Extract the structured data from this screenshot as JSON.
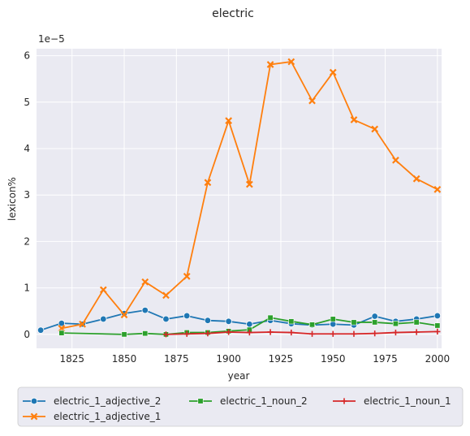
{
  "chart_data": {
    "type": "line",
    "title": "electric",
    "xlabel": "year",
    "ylabel": "lexicon%",
    "y_scale_label": "1e−5",
    "xlim": [
      1808,
      2002
    ],
    "ylim": [
      -0.3,
      6.15
    ],
    "x_ticks": [
      1825,
      1850,
      1875,
      1900,
      1925,
      1950,
      1975,
      2000
    ],
    "y_ticks": [
      0,
      1,
      2,
      3,
      4,
      5,
      6
    ],
    "grid": true,
    "legend_position": "bottom",
    "colors": {
      "plot_bg": "#eaeaf2",
      "grid": "#ffffff",
      "text": "#262626"
    },
    "series": [
      {
        "name": "electric_1_adjective_2",
        "color": "#1f77b4",
        "marker": "circle",
        "x": [
          1810,
          1820,
          1830,
          1840,
          1850,
          1860,
          1870,
          1880,
          1890,
          1900,
          1910,
          1920,
          1930,
          1940,
          1950,
          1960,
          1970,
          1980,
          1990,
          2000
        ],
        "y": [
          0.09,
          0.24,
          0.22,
          0.33,
          0.45,
          0.52,
          0.33,
          0.4,
          0.3,
          0.28,
          0.22,
          0.3,
          0.23,
          0.2,
          0.22,
          0.2,
          0.39,
          0.28,
          0.33,
          0.4
        ]
      },
      {
        "name": "electric_1_adjective_1",
        "color": "#ff7f0e",
        "marker": "x",
        "x": [
          1820,
          1830,
          1840,
          1850,
          1860,
          1870,
          1880,
          1890,
          1900,
          1910,
          1920,
          1930,
          1940,
          1950,
          1960,
          1970,
          1980,
          1990,
          2000
        ],
        "y": [
          0.13,
          0.22,
          0.96,
          0.42,
          1.13,
          0.84,
          1.25,
          3.27,
          4.6,
          3.23,
          5.81,
          5.87,
          5.03,
          5.64,
          4.62,
          4.42,
          3.75,
          3.35,
          3.12
        ]
      },
      {
        "name": "electric_1_noun_2",
        "color": "#2ca02c",
        "marker": "square",
        "x": [
          1820,
          1850,
          1860,
          1870,
          1880,
          1890,
          1900,
          1910,
          1920,
          1930,
          1940,
          1950,
          1960,
          1970,
          1980,
          1990,
          2000
        ],
        "y": [
          0.03,
          0.0,
          0.02,
          0.0,
          0.04,
          0.04,
          0.07,
          0.1,
          0.36,
          0.28,
          0.21,
          0.33,
          0.26,
          0.26,
          0.23,
          0.26,
          0.19
        ]
      },
      {
        "name": "electric_1_noun_1",
        "color": "#d62728",
        "marker": "plus",
        "x": [
          1870,
          1880,
          1890,
          1900,
          1910,
          1920,
          1930,
          1940,
          1950,
          1960,
          1970,
          1980,
          1990,
          2000
        ],
        "y": [
          0.0,
          0.01,
          0.02,
          0.05,
          0.04,
          0.05,
          0.04,
          0.01,
          0.01,
          0.01,
          0.02,
          0.04,
          0.05,
          0.06
        ]
      }
    ]
  }
}
